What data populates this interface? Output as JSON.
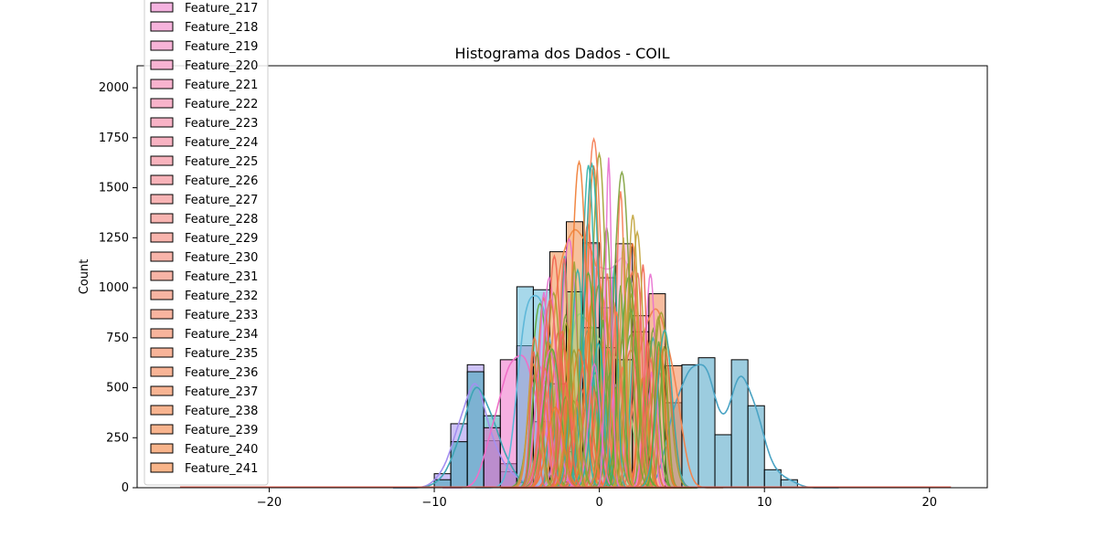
{
  "chart_data": {
    "type": "histogram",
    "title": "Histograma dos Dados - COIL",
    "xlabel": "",
    "ylabel": "Count",
    "xlim": [
      -28,
      23.5
    ],
    "ylim": [
      0,
      2110
    ],
    "xticks": [
      -20,
      -10,
      0,
      10,
      20
    ],
    "xtick_labels": [
      "−20",
      "−10",
      "0",
      "10",
      "20"
    ],
    "yticks": [
      0,
      250,
      500,
      750,
      1000,
      1250,
      1500,
      1750,
      2000
    ],
    "ytick_labels": [
      "0",
      "250",
      "500",
      "750",
      "1000",
      "1250",
      "1500",
      "1750",
      "2000"
    ],
    "kde": true,
    "legend_placement": "upper-left (overflowing above plot)",
    "legend_entries": [
      "Feature_217",
      "Feature_218",
      "Feature_219",
      "Feature_220",
      "Feature_221",
      "Feature_222",
      "Feature_223",
      "Feature_224",
      "Feature_225",
      "Feature_226",
      "Feature_227",
      "Feature_228",
      "Feature_229",
      "Feature_230",
      "Feature_231",
      "Feature_232",
      "Feature_233",
      "Feature_234",
      "Feature_235",
      "Feature_236",
      "Feature_237",
      "Feature_238",
      "Feature_239",
      "Feature_240",
      "Feature_241"
    ],
    "legend_colors": [
      "#f5b3e0",
      "#f6b3dc",
      "#f7b3d7",
      "#f7b3d3",
      "#f8b3ce",
      "#f8b3ca",
      "#f8b3c6",
      "#f8b3c2",
      "#f8b3bd",
      "#f8b3b9",
      "#f8b4b5",
      "#f8b4b1",
      "#f8b4ad",
      "#f8b4aa",
      "#f8b4a6",
      "#f8b4a2",
      "#f8b49f",
      "#f8b49c",
      "#f8b499",
      "#f8b496",
      "#f8b493",
      "#f8b490",
      "#f8b48e",
      "#f8b48b",
      "#f8b489"
    ],
    "series": [
      {
        "color": "#a48ff0",
        "bins": [
          [
            -10,
            70
          ],
          [
            -9,
            320
          ],
          [
            -8,
            615
          ],
          [
            -7,
            235
          ],
          [
            -6,
            80
          ],
          [
            -5,
            25
          ]
        ]
      },
      {
        "color": "#3da5b5",
        "bins": [
          [
            -10,
            40
          ],
          [
            -9,
            230
          ],
          [
            -8,
            580
          ],
          [
            -7,
            360
          ],
          [
            -6,
            120
          ]
        ]
      },
      {
        "color": "#ef6fc8",
        "bins": [
          [
            -7,
            300
          ],
          [
            -6,
            640
          ],
          [
            -5,
            710
          ],
          [
            -4,
            330
          ],
          [
            -3,
            60
          ]
        ]
      },
      {
        "color": "#5fb8d9",
        "bins": [
          [
            -5,
            1005
          ],
          [
            -4,
            990
          ],
          [
            -3,
            520
          ],
          [
            -2,
            180
          ]
        ]
      },
      {
        "color": "#f08e4a",
        "bins": [
          [
            -3,
            1180
          ],
          [
            -2,
            1330
          ],
          [
            -1,
            1220
          ],
          [
            0,
            900
          ]
        ]
      },
      {
        "color": "#f4a0d8",
        "bins": [
          [
            -1,
            1225
          ],
          [
            0,
            1050
          ],
          [
            1,
            1220
          ],
          [
            2,
            860
          ]
        ]
      },
      {
        "color": "#4aa3c4",
        "bins": [
          [
            4,
            425
          ],
          [
            5,
            615
          ],
          [
            6,
            650
          ],
          [
            7,
            265
          ],
          [
            8,
            640
          ],
          [
            9,
            410
          ],
          [
            10,
            90
          ],
          [
            11,
            40
          ]
        ]
      },
      {
        "color": "#f08550",
        "bins": [
          [
            2,
            780
          ],
          [
            3,
            970
          ],
          [
            4,
            610
          ]
        ]
      },
      {
        "color": "#9bcf7a",
        "bins": [
          [
            -2,
            980
          ],
          [
            -1,
            800
          ],
          [
            0,
            700
          ],
          [
            1,
            640
          ]
        ]
      }
    ]
  }
}
